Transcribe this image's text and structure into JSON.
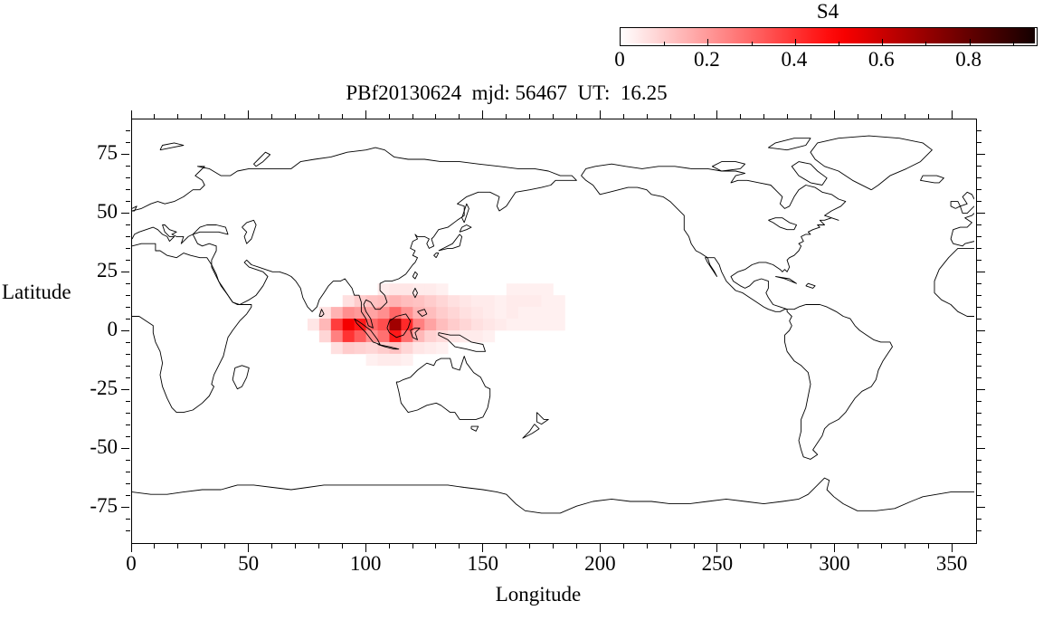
{
  "title": "PBf20130624  mjd: 56467  UT:  16.25",
  "colorbar": {
    "label": "S4",
    "tick_labels": [
      "0",
      "0.2",
      "0.4",
      "0.6",
      "0.8"
    ],
    "tick_values": [
      0,
      0.2,
      0.4,
      0.6,
      0.8
    ],
    "min": 0,
    "max": 0.95
  },
  "axes": {
    "x": {
      "label": "Longitude",
      "min": 0,
      "max": 360,
      "major_ticks": [
        0,
        50,
        100,
        150,
        200,
        250,
        300,
        350
      ],
      "minor_step": 10
    },
    "y": {
      "label": "Latitude",
      "min": -90,
      "max": 90,
      "major_ticks": [
        -75,
        -50,
        -25,
        0,
        25,
        50,
        75
      ],
      "minor_step": 5
    }
  },
  "chart_data": {
    "type": "heatmap",
    "title": "PBf20130624  mjd: 56467  UT:  16.25",
    "xlabel": "Longitude",
    "ylabel": "Latitude",
    "xlim": [
      0,
      360
    ],
    "ylim": [
      -90,
      90
    ],
    "grid": false,
    "colorbar_label": "S4",
    "colorbar_range": [
      0,
      0.95
    ],
    "colorbar_ticks": [
      0,
      0.2,
      0.4,
      0.6,
      0.8
    ],
    "basemap": "world coastlines, equirectangular, longitude 0-360",
    "description": "S4 ionospheric scintillation index; enhanced patch over the maritime continent (Southeast Asia / Indonesia), peak near lon 110E lat 0-5N, faint halo extending to lon 185 and lat -12..20",
    "cell_size_deg": 5,
    "cells_format": [
      "lon_west_edge",
      "lat_south_edge",
      "s4"
    ],
    "cells": [
      [
        105,
        15,
        0.04
      ],
      [
        110,
        15,
        0.05
      ],
      [
        115,
        15,
        0.05
      ],
      [
        120,
        15,
        0.04
      ],
      [
        125,
        15,
        0.04
      ],
      [
        130,
        15,
        0.03
      ],
      [
        160,
        15,
        0.03
      ],
      [
        165,
        15,
        0.03
      ],
      [
        170,
        15,
        0.03
      ],
      [
        175,
        15,
        0.03
      ],
      [
        90,
        10,
        0.06
      ],
      [
        95,
        10,
        0.1
      ],
      [
        100,
        10,
        0.12
      ],
      [
        105,
        10,
        0.13
      ],
      [
        110,
        10,
        0.15
      ],
      [
        115,
        10,
        0.13
      ],
      [
        120,
        10,
        0.12
      ],
      [
        125,
        10,
        0.1
      ],
      [
        130,
        10,
        0.08
      ],
      [
        135,
        10,
        0.06
      ],
      [
        140,
        10,
        0.05
      ],
      [
        145,
        10,
        0.04
      ],
      [
        150,
        10,
        0.04
      ],
      [
        155,
        10,
        0.03
      ],
      [
        160,
        10,
        0.04
      ],
      [
        165,
        10,
        0.04
      ],
      [
        170,
        10,
        0.04
      ],
      [
        175,
        10,
        0.03
      ],
      [
        180,
        10,
        0.03
      ],
      [
        80,
        5,
        0.06
      ],
      [
        85,
        5,
        0.15
      ],
      [
        90,
        5,
        0.22
      ],
      [
        95,
        5,
        0.2
      ],
      [
        100,
        5,
        0.18
      ],
      [
        105,
        5,
        0.22
      ],
      [
        110,
        5,
        0.3
      ],
      [
        115,
        5,
        0.22
      ],
      [
        120,
        5,
        0.15
      ],
      [
        125,
        5,
        0.13
      ],
      [
        130,
        5,
        0.1
      ],
      [
        135,
        5,
        0.08
      ],
      [
        140,
        5,
        0.06
      ],
      [
        145,
        5,
        0.05
      ],
      [
        150,
        5,
        0.04
      ],
      [
        155,
        5,
        0.03
      ],
      [
        160,
        5,
        0.04
      ],
      [
        165,
        5,
        0.03
      ],
      [
        170,
        5,
        0.03
      ],
      [
        175,
        5,
        0.03
      ],
      [
        180,
        5,
        0.03
      ],
      [
        75,
        0,
        0.05
      ],
      [
        80,
        0,
        0.14
      ],
      [
        85,
        0,
        0.38
      ],
      [
        90,
        0,
        0.52
      ],
      [
        95,
        0,
        0.45
      ],
      [
        100,
        0,
        0.3
      ],
      [
        105,
        0,
        0.35
      ],
      [
        110,
        0,
        0.68
      ],
      [
        115,
        0,
        0.42
      ],
      [
        120,
        0,
        0.25
      ],
      [
        125,
        0,
        0.18
      ],
      [
        130,
        0,
        0.13
      ],
      [
        135,
        0,
        0.1
      ],
      [
        140,
        0,
        0.08
      ],
      [
        145,
        0,
        0.06
      ],
      [
        150,
        0,
        0.05
      ],
      [
        155,
        0,
        0.04
      ],
      [
        160,
        0,
        0.03
      ],
      [
        165,
        0,
        0.03
      ],
      [
        170,
        0,
        0.03
      ],
      [
        175,
        0,
        0.03
      ],
      [
        180,
        0,
        0.03
      ],
      [
        80,
        -5,
        0.08
      ],
      [
        85,
        -5,
        0.25
      ],
      [
        90,
        -5,
        0.4
      ],
      [
        95,
        -5,
        0.32
      ],
      [
        100,
        -5,
        0.22
      ],
      [
        105,
        -5,
        0.28
      ],
      [
        110,
        -5,
        0.45
      ],
      [
        115,
        -5,
        0.28
      ],
      [
        120,
        -5,
        0.14
      ],
      [
        125,
        -5,
        0.09
      ],
      [
        130,
        -5,
        0.07
      ],
      [
        135,
        -5,
        0.05
      ],
      [
        140,
        -5,
        0.04
      ],
      [
        145,
        -5,
        0.04
      ],
      [
        150,
        -5,
        0.03
      ],
      [
        85,
        -10,
        0.06
      ],
      [
        90,
        -10,
        0.1
      ],
      [
        95,
        -10,
        0.09
      ],
      [
        100,
        -10,
        0.08
      ],
      [
        105,
        -10,
        0.1
      ],
      [
        110,
        -10,
        0.12
      ],
      [
        115,
        -10,
        0.08
      ],
      [
        120,
        -10,
        0.05
      ],
      [
        125,
        -10,
        0.04
      ],
      [
        130,
        -10,
        0.03
      ],
      [
        100,
        -15,
        0.03
      ],
      [
        105,
        -15,
        0.04
      ],
      [
        110,
        -15,
        0.04
      ],
      [
        115,
        -15,
        0.03
      ]
    ]
  }
}
